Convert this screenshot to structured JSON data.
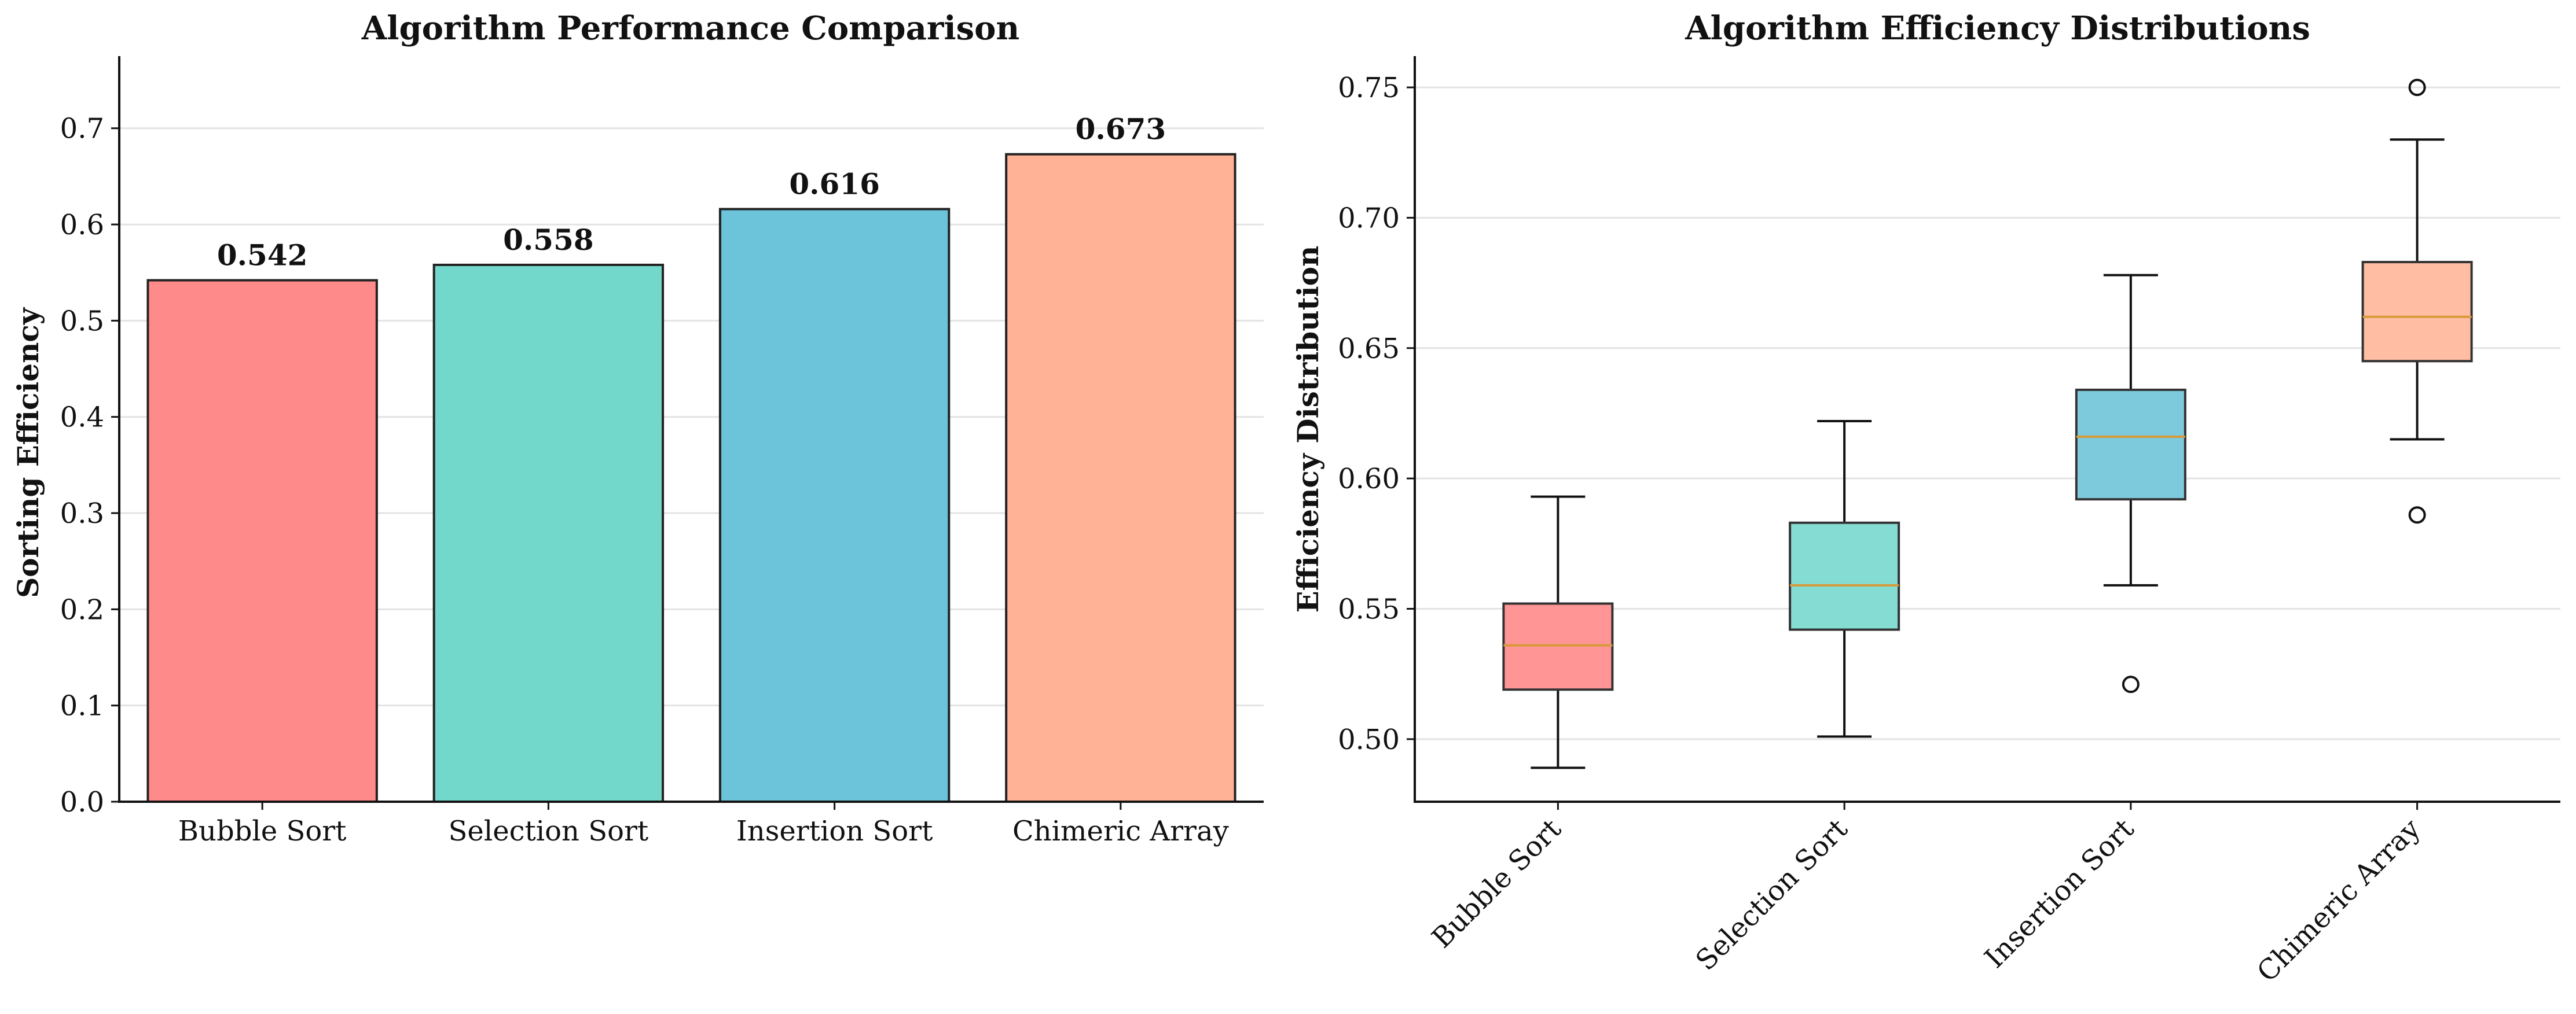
{
  "chart_data": [
    {
      "type": "bar",
      "title": "Algorithm Performance Comparison",
      "xlabel": "",
      "ylabel": "Sorting Efficiency",
      "categories": [
        "Bubble Sort",
        "Selection Sort",
        "Insertion Sort",
        "Chimeric Array"
      ],
      "values": [
        0.542,
        0.558,
        0.616,
        0.673
      ],
      "value_labels": [
        "0.542",
        "0.558",
        "0.616",
        "0.673"
      ],
      "colors": [
        "#FF8A8A",
        "#72D8CB",
        "#6BC4D9",
        "#FFB296"
      ],
      "ylim": [
        0,
        0.775
      ],
      "yticks": [
        0.0,
        0.1,
        0.2,
        0.3,
        0.4,
        0.5,
        0.6,
        0.7
      ],
      "ytick_labels": [
        "0.0",
        "0.1",
        "0.2",
        "0.3",
        "0.4",
        "0.5",
        "0.6",
        "0.7"
      ],
      "grid": "y"
    },
    {
      "type": "box",
      "title": "Algorithm Efficiency Distributions",
      "xlabel": "",
      "ylabel": "Efficiency Distribution",
      "categories": [
        "Bubble Sort",
        "Selection Sort",
        "Insertion Sort",
        "Chimeric Array"
      ],
      "boxes": [
        {
          "whisker_low": 0.489,
          "q1": 0.519,
          "median": 0.536,
          "q3": 0.552,
          "whisker_high": 0.593,
          "outliers": []
        },
        {
          "whisker_low": 0.501,
          "q1": 0.542,
          "median": 0.559,
          "q3": 0.583,
          "whisker_high": 0.622,
          "outliers": []
        },
        {
          "whisker_low": 0.559,
          "q1": 0.592,
          "median": 0.616,
          "q3": 0.634,
          "whisker_high": 0.678,
          "outliers": [
            0.521
          ]
        },
        {
          "whisker_low": 0.615,
          "q1": 0.645,
          "median": 0.662,
          "q3": 0.683,
          "whisker_high": 0.73,
          "outliers": [
            0.586,
            0.75
          ]
        }
      ],
      "colors": [
        "#FF9595",
        "#84DCD2",
        "#7DCADC",
        "#FFBEA4"
      ],
      "median_color": "#D89A3A",
      "ylim": [
        0.476,
        0.762
      ],
      "yticks": [
        0.5,
        0.55,
        0.6,
        0.65,
        0.7,
        0.75
      ],
      "ytick_labels": [
        "0.50",
        "0.55",
        "0.60",
        "0.65",
        "0.70",
        "0.75"
      ],
      "grid": "y",
      "xtick_rotation_deg": -45
    }
  ]
}
